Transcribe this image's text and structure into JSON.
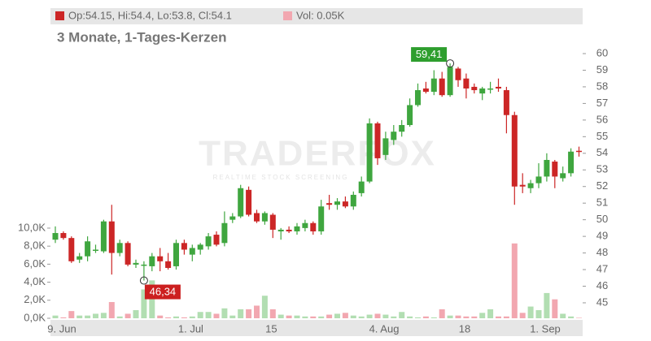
{
  "chart_data": {
    "type": "candlestick",
    "header": {
      "ohlc": "Op:54.15, Hi:54.4, Lo:53.8, Cl:54.1",
      "volume": "Vol: 0.05K"
    },
    "subtitle": "3 Monate, 1-Tages-Kerzen",
    "watermark": {
      "main": "TRADERFOX",
      "sub": "REALTIME STOCK SCREENING"
    },
    "categories": [
      "9. Jun",
      null,
      null,
      null,
      null,
      null,
      null,
      null,
      null,
      null,
      null,
      null,
      null,
      null,
      null,
      null,
      "1. Jul",
      null,
      null,
      null,
      null,
      null,
      null,
      null,
      null,
      null,
      "15",
      null,
      null,
      null,
      null,
      null,
      null,
      null,
      null,
      null,
      null,
      null,
      null,
      null,
      "4. Aug",
      null,
      null,
      null,
      null,
      null,
      null,
      null,
      null,
      null,
      "18",
      null,
      null,
      null,
      null,
      null,
      null,
      null,
      null,
      null,
      "1. Sep",
      null,
      null,
      null,
      null,
      null
    ],
    "open": [
      48.8,
      49.2,
      48.9,
      47.6,
      47.8,
      48.2,
      48.1,
      49.9,
      48.0,
      48.6,
      47.3,
      47.3,
      47.2,
      47.8,
      47.5,
      47.2,
      48.6,
      47.9,
      48.2,
      48.4,
      49.1,
      48.6,
      50.0,
      50.2,
      51.8,
      50.4,
      49.9,
      50.3,
      49.3,
      49.4,
      49.3,
      49.5,
      49.8,
      49.3,
      51.0,
      50.9,
      51.1,
      50.8,
      51.6,
      52.3,
      55.8,
      53.9,
      54.8,
      55.3,
      55.7,
      56.9,
      57.9,
      57.7,
      58.5,
      57.5,
      59.1,
      58.5,
      58.0,
      57.6,
      57.9,
      58.0,
      57.8,
      56.3,
      52.1,
      51.9,
      52.2,
      52.6,
      53.5,
      52.5,
      52.8,
      54.15
    ],
    "high": [
      49.6,
      49.3,
      49.0,
      48.0,
      49.0,
      48.5,
      50.0,
      50.9,
      48.8,
      48.7,
      47.6,
      47.5,
      48.0,
      48.3,
      48.0,
      48.8,
      48.8,
      48.5,
      48.6,
      49.2,
      49.3,
      50.5,
      50.4,
      52.1,
      52.0,
      50.6,
      50.5,
      50.4,
      49.5,
      49.6,
      49.8,
      50.0,
      49.9,
      51.2,
      51.5,
      51.3,
      51.4,
      51.7,
      52.6,
      56.1,
      55.9,
      55.3,
      55.7,
      56.0,
      57.3,
      58.2,
      58.3,
      59.0,
      58.9,
      59.41,
      59.2,
      58.8,
      58.2,
      58.0,
      58.3,
      58.5,
      58.0,
      56.5,
      52.8,
      52.4,
      53.4,
      54.0,
      53.6,
      53.2,
      54.3,
      54.4
    ],
    "low": [
      48.6,
      48.8,
      47.4,
      47.4,
      47.5,
      48.0,
      48.0,
      46.7,
      47.8,
      47.2,
      47.1,
      46.34,
      46.9,
      46.9,
      47.0,
      47.0,
      47.9,
      47.5,
      47.9,
      48.2,
      48.4,
      48.4,
      49.8,
      50.1,
      50.2,
      49.8,
      49.7,
      48.9,
      48.8,
      49.2,
      49.1,
      49.3,
      49.1,
      49.1,
      50.6,
      50.6,
      50.7,
      50.6,
      51.4,
      52.2,
      53.3,
      53.6,
      54.5,
      55.0,
      55.6,
      56.8,
      57.6,
      57.5,
      57.4,
      57.4,
      58.0,
      57.3,
      57.6,
      57.2,
      57.6,
      57.7,
      55.2,
      50.9,
      51.6,
      51.6,
      51.9,
      52.3,
      51.9,
      52.3,
      52.6,
      53.8
    ],
    "close": [
      49.2,
      48.9,
      47.5,
      47.8,
      48.7,
      48.2,
      49.9,
      48.0,
      48.6,
      47.3,
      47.4,
      47.3,
      47.8,
      47.5,
      47.1,
      48.6,
      48.2,
      48.3,
      48.5,
      49.0,
      48.5,
      49.8,
      50.2,
      51.9,
      50.3,
      49.9,
      50.4,
      49.4,
      49.4,
      49.3,
      49.6,
      49.8,
      49.3,
      50.8,
      50.9,
      51.1,
      50.8,
      51.5,
      52.3,
      55.8,
      53.7,
      54.9,
      55.3,
      55.7,
      56.9,
      57.8,
      57.7,
      58.5,
      57.5,
      59.2,
      58.4,
      57.9,
      57.8,
      57.9,
      57.9,
      57.9,
      56.3,
      52.0,
      52.0,
      52.2,
      52.6,
      53.6,
      52.6,
      52.8,
      54.1,
      54.1
    ],
    "volume": [
      0.3,
      0.1,
      0.8,
      0.3,
      0.3,
      0.5,
      0.6,
      1.8,
      0.2,
      0.5,
      0.9,
      3.2,
      4.2,
      0.3,
      0.1,
      0.2,
      0.1,
      0.2,
      0.7,
      0.7,
      0.5,
      1.1,
      0.3,
      1.0,
      1.0,
      1.4,
      2.5,
      1.0,
      0.4,
      0.3,
      0.3,
      0.2,
      0.2,
      0.2,
      0.4,
      0.5,
      0.6,
      0.3,
      0.2,
      0.4,
      0.5,
      0.4,
      0.2,
      0.7,
      0.2,
      0.1,
      0.2,
      0.1,
      1.0,
      0.3,
      0.3,
      0.2,
      0.2,
      0.6,
      1.0,
      0.2,
      0.2,
      8.3,
      0.6,
      1.3,
      0.9,
      2.8,
      2.1,
      0.5,
      0.2,
      0.05
    ],
    "ylim": [
      44.07,
      61.76
    ],
    "yticks": [
      45,
      46,
      47,
      48,
      49,
      50,
      51,
      52,
      53,
      54,
      55,
      56,
      57,
      58,
      59,
      60
    ],
    "y2lim": [
      0,
      32.6
    ],
    "y2ticks": [
      {
        "value": 0,
        "label": "0,0K"
      },
      {
        "value": 2,
        "label": "2,0K"
      },
      {
        "value": 4,
        "label": "4,0K"
      },
      {
        "value": 6,
        "label": "6,0K"
      },
      {
        "value": 8,
        "label": "8,0K"
      },
      {
        "value": 10,
        "label": "10,0K"
      }
    ],
    "annotations": [
      {
        "text": "59,41",
        "value": 59.41,
        "index": 49,
        "color": "#2e9e2e"
      },
      {
        "text": "46,34",
        "value": 46.34,
        "index": 11,
        "color": "#cc1f1f"
      }
    ],
    "up_color": "#3fa63f",
    "down_color": "#cc2626",
    "up_volume_color": "#b2deb2",
    "down_volume_color": "#f2a7b0"
  }
}
